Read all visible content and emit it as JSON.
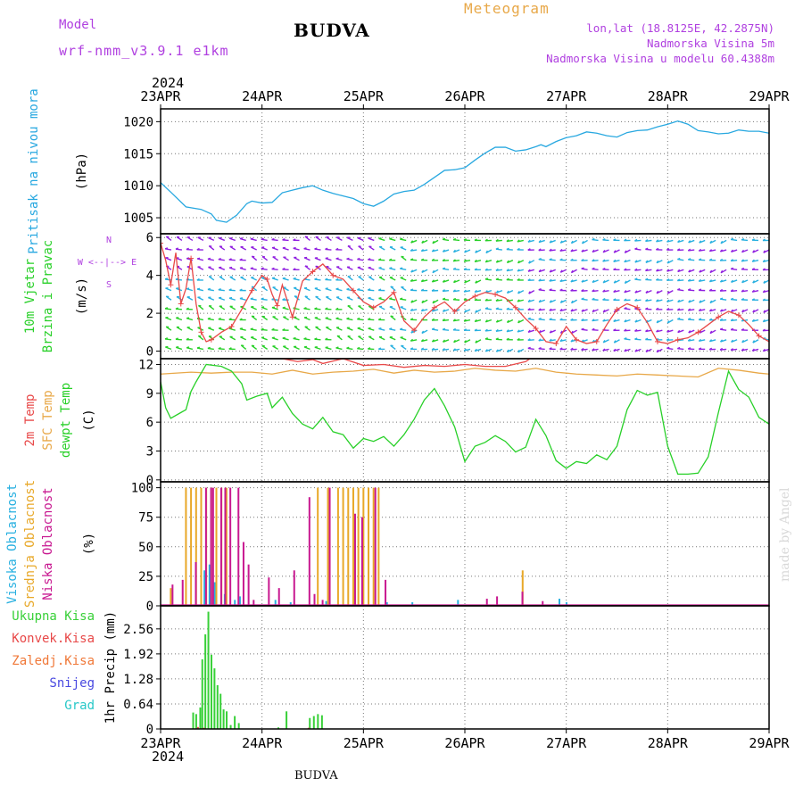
{
  "header": {
    "title": "BUDVA",
    "model_label": "Model",
    "model_name": "wrf-nmm_v3.9.1 e1km",
    "meteogram_label": "Meteogram",
    "info_lines": [
      "lon,lat (18.8125E, 42.2875N)",
      "Nadmorska Visina 5m",
      "Nadmorska Visina u modelu 60.4388m"
    ],
    "bottom_label": "BUDVA",
    "signature": "made by Angel"
  },
  "colors": {
    "pressure": "#28a8e0",
    "temp_2m": "#e84848",
    "temp_sfc": "#e8a848",
    "dewpoint": "#28d028",
    "high_cloud": "#28b0e0",
    "mid_cloud": "#e8a828",
    "low_cloud": "#c81890",
    "precip_total": "#38d038",
    "precip_conv": "#e84848",
    "precip_frozen": "#f07838",
    "snow": "#4848e0",
    "graupel": "#28c8c8",
    "wind_arrow_calm": "#28d028",
    "wind_arrow_mid": "#28b0e0",
    "wind_arrow_strong": "#9020e0",
    "wind_speed_line": "#e84848",
    "compass": "#b040e0"
  },
  "chart_data": {
    "time_axis": {
      "year": "2024",
      "ticks": [
        "23APR",
        "24APR",
        "25APR",
        "26APR",
        "27APR",
        "28APR",
        "29APR"
      ]
    },
    "panels": [
      {
        "id": "pressure",
        "type": "line",
        "ylabels": [
          "Pritisak na nivou mora"
        ],
        "unit": "(hPa)",
        "yticks": [
          1005,
          1010,
          1015,
          1020
        ],
        "ylim": [
          1002.5,
          1022
        ],
        "series": [
          {
            "name": "Pritisak na nivou mora",
            "color_key": "pressure",
            "x": [
              0,
              0.1,
              0.25,
              0.4,
              0.5,
              0.55,
              0.65,
              0.75,
              0.85,
              0.9,
              1.0,
              1.1,
              1.2,
              1.3,
              1.4,
              1.5,
              1.6,
              1.7,
              1.8,
              1.9,
              2.0,
              2.1,
              2.2,
              2.3,
              2.4,
              2.5,
              2.6,
              2.7,
              2.8,
              2.9,
              3.0,
              3.1,
              3.2,
              3.3,
              3.4,
              3.5,
              3.6,
              3.7,
              3.75,
              3.8,
              3.9,
              4.0,
              4.1,
              4.2,
              4.3,
              4.4,
              4.5,
              4.6,
              4.7,
              4.8,
              4.9,
              5.0,
              5.1,
              5.2,
              5.3,
              5.4,
              5.5,
              5.6,
              5.7,
              5.8,
              5.9,
              6.0
            ],
            "y": [
              1010.5,
              1009,
              1006.7,
              1006.3,
              1005.6,
              1004.6,
              1004.3,
              1005.4,
              1007.2,
              1007.6,
              1007.3,
              1007.4,
              1008.9,
              1009.3,
              1009.7,
              1010,
              1009.3,
              1008.8,
              1008.4,
              1008,
              1007.2,
              1006.8,
              1007.6,
              1008.7,
              1009.1,
              1009.3,
              1010.2,
              1011.3,
              1012.4,
              1012.5,
              1012.8,
              1014,
              1015.1,
              1016,
              1016,
              1015.4,
              1015.6,
              1016.1,
              1016.4,
              1016.1,
              1016.9,
              1017.5,
              1017.8,
              1018.4,
              1018.2,
              1017.8,
              1017.6,
              1018.3,
              1018.6,
              1018.7,
              1019.2,
              1019.6,
              1020.1,
              1019.6,
              1018.6,
              1018.4,
              1018.1,
              1018.2,
              1018.7,
              1018.5,
              1018.5,
              1018.2
            ]
          }
        ]
      },
      {
        "id": "wind",
        "type": "line",
        "ylabels": [
          "10m Vjetar",
          "Brzina i Pravac"
        ],
        "unit": "(m/s)",
        "yticks": [
          0,
          2,
          4,
          6
        ],
        "ylim": [
          -0.4,
          6.2
        ],
        "compass": [
          "N",
          "W <--|--> E",
          "S"
        ],
        "series": [
          {
            "name": "10m Vjetar",
            "color_key": "wind_speed_line",
            "x": [
              0,
              0.05,
              0.1,
              0.15,
              0.2,
              0.25,
              0.3,
              0.35,
              0.4,
              0.45,
              0.5,
              0.6,
              0.7,
              0.8,
              0.9,
              1.0,
              1.05,
              1.1,
              1.15,
              1.2,
              1.3,
              1.4,
              1.5,
              1.6,
              1.7,
              1.8,
              1.9,
              2.0,
              2.1,
              2.2,
              2.3,
              2.4,
              2.5,
              2.6,
              2.7,
              2.8,
              2.9,
              3.0,
              3.1,
              3.2,
              3.3,
              3.4,
              3.5,
              3.6,
              3.7,
              3.8,
              3.9,
              4.0,
              4.1,
              4.2,
              4.3,
              4.4,
              4.5,
              4.6,
              4.7,
              4.8,
              4.9,
              5.0,
              5.1,
              5.2,
              5.3,
              5.4,
              5.5,
              5.6,
              5.7,
              5.8,
              5.9,
              6.0
            ],
            "y": [
              5.7,
              4.8,
              3.5,
              5.2,
              2.5,
              3.3,
              4.9,
              2.5,
              1.0,
              0.5,
              0.6,
              1.0,
              1.3,
              2.2,
              3.2,
              4.0,
              3.8,
              3.0,
              2.4,
              3.5,
              1.8,
              3.7,
              4.2,
              4.6,
              4.0,
              3.8,
              3.2,
              2.6,
              2.3,
              2.6,
              3.1,
              1.6,
              1.1,
              1.8,
              2.3,
              2.6,
              2.1,
              2.6,
              2.9,
              3.1,
              3.0,
              2.8,
              2.3,
              1.7,
              1.2,
              0.5,
              0.4,
              1.3,
              0.6,
              0.4,
              0.5,
              1.4,
              2.2,
              2.5,
              2.3,
              1.5,
              0.5,
              0.4,
              0.6,
              0.7,
              1.0,
              1.4,
              1.8,
              2.1,
              1.9,
              1.4,
              0.8,
              0.5
            ]
          }
        ]
      },
      {
        "id": "temperature",
        "type": "line",
        "ylabels": [
          "2m Temp",
          "SFC Temp",
          "dewpt Temp"
        ],
        "unit": "(C)",
        "yticks": [
          0,
          3,
          6,
          9,
          12
        ],
        "ylim": [
          -0.2,
          12.6
        ],
        "series": [
          {
            "name": "2m Temp",
            "color_key": "temp_2m",
            "x": [
              0,
              0.3,
              0.5,
              0.6,
              0.8,
              1.0,
              1.2,
              1.35,
              1.5,
              1.6,
              1.8,
              2.0,
              2.2,
              2.4,
              2.6,
              2.8,
              3.0,
              3.2,
              3.4,
              3.6,
              3.7
            ],
            "y": [
              12.7,
              12.7,
              12.6,
              13.0,
              12.9,
              13.0,
              12.6,
              12.3,
              12.5,
              12.1,
              12.6,
              11.9,
              12.0,
              11.7,
              11.9,
              11.8,
              12.0,
              11.8,
              11.8,
              12.3,
              13.0
            ]
          },
          {
            "name": "SFC Temp",
            "color_key": "temp_sfc",
            "x": [
              0,
              0.3,
              0.5,
              0.7,
              0.9,
              1.1,
              1.3,
              1.5,
              1.7,
              1.9,
              2.1,
              2.3,
              2.5,
              2.7,
              2.9,
              3.1,
              3.3,
              3.5,
              3.7,
              3.9,
              4.1,
              4.3,
              4.5,
              4.7,
              4.9,
              5.1,
              5.3,
              5.5,
              5.7,
              5.9,
              6.0
            ],
            "y": [
              11.0,
              11.2,
              11.1,
              11.2,
              11.2,
              11.0,
              11.4,
              11.0,
              11.2,
              11.3,
              11.5,
              11.1,
              11.4,
              11.2,
              11.3,
              11.6,
              11.4,
              11.3,
              11.6,
              11.2,
              11.0,
              10.9,
              10.8,
              11.0,
              10.9,
              10.8,
              10.7,
              11.6,
              11.4,
              11.1,
              11.0
            ]
          },
          {
            "name": "dewpt Temp",
            "color_key": "dewpoint",
            "x": [
              0,
              0.05,
              0.1,
              0.2,
              0.25,
              0.3,
              0.35,
              0.45,
              0.6,
              0.7,
              0.8,
              0.85,
              0.95,
              1.05,
              1.1,
              1.2,
              1.3,
              1.4,
              1.5,
              1.6,
              1.7,
              1.8,
              1.9,
              2.0,
              2.1,
              2.2,
              2.3,
              2.4,
              2.5,
              2.6,
              2.7,
              2.8,
              2.9,
              3.0,
              3.1,
              3.2,
              3.3,
              3.4,
              3.5,
              3.6,
              3.7,
              3.8,
              3.9,
              4.0,
              4.1,
              4.2,
              4.3,
              4.4,
              4.5,
              4.6,
              4.7,
              4.8,
              4.9,
              5.0,
              5.1,
              5.2,
              5.3,
              5.4,
              5.5,
              5.6,
              5.7,
              5.8,
              5.9,
              6.0
            ],
            "y": [
              10.2,
              7.5,
              6.4,
              7.0,
              7.3,
              9.2,
              10.2,
              12.0,
              11.8,
              11.3,
              10.0,
              8.3,
              8.7,
              9.0,
              7.5,
              8.6,
              6.9,
              5.8,
              5.3,
              6.5,
              5.0,
              4.7,
              3.3,
              4.3,
              4.0,
              4.5,
              3.5,
              4.7,
              6.3,
              8.3,
              9.5,
              7.7,
              5.5,
              1.9,
              3.5,
              3.9,
              4.6,
              4.0,
              2.9,
              3.4,
              6.3,
              4.6,
              2.0,
              1.2,
              1.9,
              1.7,
              2.6,
              2.1,
              3.5,
              7.3,
              9.3,
              8.8,
              9.1,
              3.5,
              0.6,
              0.6,
              0.7,
              2.4,
              7.0,
              11.3,
              9.4,
              8.6,
              6.5,
              5.8
            ]
          }
        ]
      },
      {
        "id": "clouds",
        "type": "bar",
        "ylabels": [
          "Visoka Oblacnost",
          "Srednja Oblacnost",
          "Niska Oblacnost"
        ],
        "unit": "(%)",
        "yticks": [
          0,
          25,
          50,
          75,
          100
        ],
        "ylim": [
          0,
          105
        ],
        "series": [
          {
            "name": "Visoka Oblacnost",
            "color_key": "high_cloud",
            "x": [
              0.45,
              0.5,
              0.55,
              0.65,
              0.75,
              0.8,
              1.15,
              1.3,
              1.65,
              2.25,
              2.5,
              2.95,
              3.95,
              4.02
            ],
            "y": [
              30,
              35,
              20,
              10,
              5,
              8,
              5,
              3,
              4,
              3,
              3,
              5,
              6,
              3
            ]
          },
          {
            "name": "Srednja Oblacnost",
            "color_key": "mid_cloud",
            "x": [
              0.1,
              0.25,
              0.3,
              0.35,
              0.4,
              0.45,
              0.5,
              0.55,
              0.6,
              0.65,
              1.55,
              1.65,
              1.75,
              1.8,
              1.85,
              1.9,
              1.95,
              2.0,
              2.05,
              2.1,
              2.15,
              3.57
            ],
            "y": [
              15,
              100,
              100,
              100,
              100,
              100,
              100,
              100,
              100,
              100,
              100,
              100,
              100,
              100,
              100,
              100,
              100,
              100,
              100,
              100,
              100,
              30
            ]
          },
          {
            "name": "Niska Oblacnost",
            "color_key": "low_cloud",
            "x": [
              0.1,
              0.2,
              0.33,
              0.43,
              0.48,
              0.5,
              0.58,
              0.62,
              0.67,
              0.75,
              0.8,
              0.85,
              0.9,
              1.05,
              1.15,
              1.3,
              1.45,
              1.5,
              1.58,
              1.65,
              1.9,
              1.97,
              2.1,
              2.2,
              3.2,
              3.3,
              3.55,
              3.75
            ],
            "y": [
              18,
              22,
              37,
              100,
              100,
              100,
              100,
              100,
              100,
              100,
              54,
              35,
              5,
              24,
              15,
              30,
              92,
              10,
              5,
              100,
              78,
              75,
              100,
              22,
              6,
              8,
              12,
              4
            ]
          }
        ]
      },
      {
        "id": "precipitation",
        "type": "bar",
        "ylabels": [
          "Ukupna Kisa",
          "Konvek.Kisa",
          "Zaledj.Kisa",
          "Snijeg",
          "Grad"
        ],
        "unit": "1hr Precip (mm)",
        "yticks": [
          0,
          0.64,
          1.28,
          1.92,
          2.56
        ],
        "ylim": [
          0,
          3.15
        ],
        "series": [
          {
            "name": "Ukupna Kisa",
            "color_key": "precip_total",
            "x": [
              0.33,
              0.36,
              0.4,
              0.42,
              0.45,
              0.48,
              0.51,
              0.54,
              0.57,
              0.6,
              0.63,
              0.66,
              0.7,
              0.74,
              0.78,
              1.17,
              1.25,
              1.48,
              1.52,
              1.56,
              1.6
            ],
            "y": [
              0.42,
              0.38,
              0.55,
              1.78,
              2.42,
              3.0,
              1.9,
              1.55,
              1.12,
              0.9,
              0.5,
              0.45,
              0.1,
              0.33,
              0.15,
              0.04,
              0.45,
              0.28,
              0.33,
              0.38,
              0.35
            ]
          },
          {
            "name": "Konvek.Kisa",
            "color_key": "precip_conv",
            "x": [
              0.36,
              0.42,
              1.45
            ],
            "y": [
              0.05,
              0.03,
              0.03
            ]
          }
        ]
      }
    ]
  }
}
